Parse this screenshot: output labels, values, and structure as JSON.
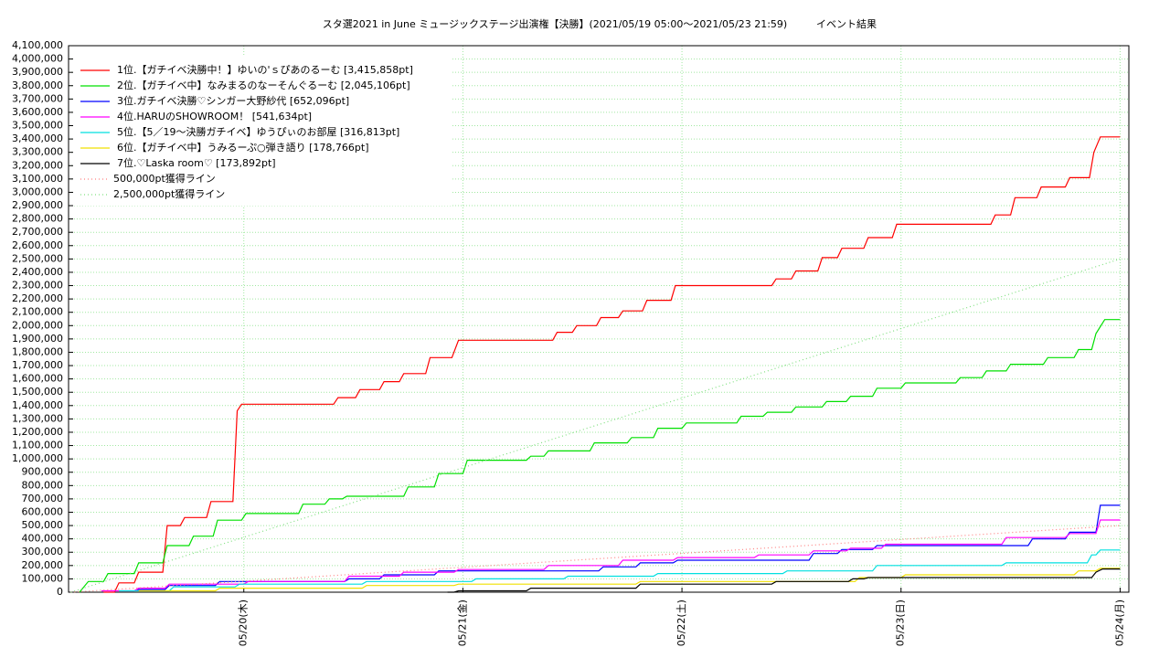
{
  "chart_data": {
    "type": "line",
    "title": "スタ選2021 in June ミュージックステージ出演権【決勝】(2021/05/19 05:00～2021/05/23 21:59)",
    "subtitle": "イベント結果",
    "xlim": [
      0.2,
      5.04
    ],
    "xticks": [
      {
        "value": 1,
        "label": "05/20(木)"
      },
      {
        "value": 2,
        "label": "05/21(金)"
      },
      {
        "value": 3,
        "label": "05/22(土)"
      },
      {
        "value": 4,
        "label": "05/23(日)"
      },
      {
        "value": 5,
        "label": "05/24(月)"
      }
    ],
    "ylim": [
      0,
      4100000
    ],
    "yticks": [
      0,
      {
        "value": 100000,
        "label": "100,000"
      },
      {
        "value": 200000,
        "label": "200,000"
      },
      {
        "value": 300000,
        "label": "300,000"
      },
      {
        "value": 400000,
        "label": "400,000"
      },
      {
        "value": 500000,
        "label": "500,000"
      },
      {
        "value": 600000,
        "label": "600,000"
      },
      {
        "value": 700000,
        "label": "700,000"
      },
      {
        "value": 800000,
        "label": "800,000"
      },
      {
        "value": 900000,
        "label": "900,000"
      },
      {
        "value": 1000000,
        "label": "1,000,000"
      },
      {
        "value": 1100000,
        "label": "1,100,000"
      },
      {
        "value": 1200000,
        "label": "1,200,000"
      },
      {
        "value": 1300000,
        "label": "1,300,000"
      },
      {
        "value": 1400000,
        "label": "1,400,000"
      },
      {
        "value": 1500000,
        "label": "1,500,000"
      },
      {
        "value": 1600000,
        "label": "1,600,000"
      },
      {
        "value": 1700000,
        "label": "1,700,000"
      },
      {
        "value": 1800000,
        "label": "1,800,000"
      },
      {
        "value": 1900000,
        "label": "1,900,000"
      },
      {
        "value": 2000000,
        "label": "2,000,000"
      },
      {
        "value": 2100000,
        "label": "2,100,000"
      },
      {
        "value": 2200000,
        "label": "2,200,000"
      },
      {
        "value": 2300000,
        "label": "2,300,000"
      },
      {
        "value": 2400000,
        "label": "2,400,000"
      },
      {
        "value": 2500000,
        "label": "2,500,000"
      },
      {
        "value": 2600000,
        "label": "2,600,000"
      },
      {
        "value": 2700000,
        "label": "2,700,000"
      },
      {
        "value": 2800000,
        "label": "2,800,000"
      },
      {
        "value": 2900000,
        "label": "2,900,000"
      },
      {
        "value": 3000000,
        "label": "3,000,000"
      },
      {
        "value": 3100000,
        "label": "3,100,000"
      },
      {
        "value": 3200000,
        "label": "3,200,000"
      },
      {
        "value": 3300000,
        "label": "3,300,000"
      },
      {
        "value": 3400000,
        "label": "3,400,000"
      },
      {
        "value": 3500000,
        "label": "3,500,000"
      },
      {
        "value": 3600000,
        "label": "3,600,000"
      },
      {
        "value": 3700000,
        "label": "3,700,000"
      },
      {
        "value": 3800000,
        "label": "3,800,000"
      },
      {
        "value": 3900000,
        "label": "3,900,000"
      },
      {
        "value": 4000000,
        "label": "4,000,000"
      },
      {
        "value": 4100000,
        "label": "4,100,000"
      }
    ],
    "grid": true,
    "legend": "upper left",
    "series": [
      {
        "name": "1位.【ガチイベ決勝中！】ゆいの'ｓぴあのるーむ [3,415,858pt]",
        "color": "#ff0000",
        "style": "solid",
        "x": [
          0.36,
          0.41,
          0.43,
          0.5,
          0.52,
          0.63,
          0.65,
          0.71,
          0.73,
          0.83,
          0.85,
          0.95,
          0.97,
          0.99,
          1.41,
          1.43,
          1.51,
          1.53,
          1.62,
          1.64,
          1.71,
          1.73,
          1.83,
          1.85,
          1.95,
          1.98,
          2.41,
          2.43,
          2.5,
          2.52,
          2.61,
          2.63,
          2.71,
          2.73,
          2.82,
          2.84,
          2.95,
          2.97,
          3.41,
          3.43,
          3.5,
          3.52,
          3.62,
          3.64,
          3.71,
          3.73,
          3.83,
          3.85,
          3.96,
          3.98,
          4.41,
          4.43,
          4.5,
          4.52,
          4.62,
          4.64,
          4.75,
          4.77,
          4.86,
          4.88,
          4.91,
          5.0
        ],
        "values": [
          0,
          0,
          70000,
          70000,
          150000,
          150000,
          500000,
          500000,
          560000,
          560000,
          680000,
          680000,
          1360000,
          1410000,
          1410000,
          1460000,
          1460000,
          1520000,
          1520000,
          1580000,
          1580000,
          1640000,
          1640000,
          1760000,
          1760000,
          1890000,
          1890000,
          1950000,
          1950000,
          2000000,
          2000000,
          2060000,
          2060000,
          2110000,
          2110000,
          2190000,
          2190000,
          2300000,
          2300000,
          2350000,
          2350000,
          2410000,
          2410000,
          2510000,
          2510000,
          2580000,
          2580000,
          2660000,
          2660000,
          2760000,
          2760000,
          2830000,
          2830000,
          2960000,
          2960000,
          3040000,
          3040000,
          3110000,
          3110000,
          3300000,
          3415858,
          3415858
        ]
      },
      {
        "name": "2位.【ガチイベ中】なみまるのなーそんぐるーむ [2,045,106pt]",
        "color": "#00e000",
        "style": "solid",
        "x": [
          0.25,
          0.29,
          0.36,
          0.38,
          0.5,
          0.52,
          0.63,
          0.65,
          0.75,
          0.77,
          0.86,
          0.88,
          0.99,
          1.01,
          1.25,
          1.27,
          1.37,
          1.39,
          1.45,
          1.47,
          1.73,
          1.75,
          1.87,
          1.89,
          2.0,
          2.02,
          2.29,
          2.31,
          2.37,
          2.39,
          2.58,
          2.6,
          2.75,
          2.77,
          2.87,
          2.89,
          3.0,
          3.02,
          3.25,
          3.27,
          3.37,
          3.39,
          3.5,
          3.52,
          3.64,
          3.66,
          3.75,
          3.77,
          3.87,
          3.89,
          4.0,
          4.02,
          4.25,
          4.27,
          4.37,
          4.39,
          4.48,
          4.5,
          4.65,
          4.67,
          4.79,
          4.81,
          4.87,
          4.89,
          4.93,
          5.0
        ],
        "values": [
          0,
          80000,
          80000,
          140000,
          140000,
          220000,
          220000,
          350000,
          350000,
          420000,
          420000,
          540000,
          540000,
          590000,
          590000,
          660000,
          660000,
          700000,
          700000,
          720000,
          720000,
          790000,
          790000,
          890000,
          890000,
          990000,
          990000,
          1020000,
          1020000,
          1060000,
          1060000,
          1120000,
          1120000,
          1160000,
          1160000,
          1230000,
          1230000,
          1270000,
          1270000,
          1320000,
          1320000,
          1350000,
          1350000,
          1390000,
          1390000,
          1430000,
          1430000,
          1470000,
          1470000,
          1530000,
          1530000,
          1570000,
          1570000,
          1610000,
          1610000,
          1660000,
          1660000,
          1710000,
          1710000,
          1760000,
          1760000,
          1820000,
          1820000,
          1940000,
          2045106,
          2045106
        ]
      },
      {
        "name": "3位.ガチイベ決勝♡シンガー大野紗代 [652,096pt]",
        "color": "#0000ff",
        "style": "solid",
        "x": [
          0.51,
          0.64,
          0.66,
          0.87,
          0.89,
          1.46,
          1.48,
          1.62,
          1.64,
          1.87,
          1.89,
          2.62,
          2.64,
          2.79,
          2.81,
          2.96,
          2.98,
          3.58,
          3.6,
          3.71,
          3.73,
          3.87,
          3.89,
          4.58,
          4.6,
          4.75,
          4.77,
          4.89,
          4.91,
          5.0
        ],
        "values": [
          20000,
          20000,
          50000,
          50000,
          80000,
          80000,
          100000,
          100000,
          130000,
          130000,
          160000,
          160000,
          190000,
          190000,
          220000,
          220000,
          240000,
          240000,
          290000,
          290000,
          320000,
          320000,
          350000,
          350000,
          400000,
          400000,
          450000,
          450000,
          652096,
          652096
        ]
      },
      {
        "name": "4位.HARUのSHOWROOM！ [541,634pt]",
        "color": "#ff00ff",
        "style": "solid",
        "x": [
          0.35,
          0.5,
          0.52,
          0.64,
          0.66,
          1.0,
          1.02,
          1.46,
          1.48,
          1.71,
          1.73,
          1.96,
          1.98,
          2.37,
          2.39,
          2.71,
          2.73,
          2.96,
          2.98,
          3.33,
          3.35,
          3.58,
          3.6,
          3.75,
          3.77,
          3.91,
          3.93,
          4.46,
          4.48,
          4.75,
          4.77,
          4.89,
          4.91,
          5.0
        ],
        "values": [
          10000,
          10000,
          30000,
          30000,
          60000,
          60000,
          80000,
          80000,
          120000,
          120000,
          150000,
          150000,
          170000,
          170000,
          200000,
          200000,
          240000,
          240000,
          260000,
          260000,
          280000,
          280000,
          310000,
          310000,
          330000,
          330000,
          360000,
          360000,
          410000,
          410000,
          440000,
          440000,
          541634,
          541634
        ]
      },
      {
        "name": "5位.【5／19～決勝ガチイベ】ゆうぴぃのお部屋 [316,813pt]",
        "color": "#00e0e0",
        "style": "solid",
        "x": [
          0.43,
          0.66,
          0.68,
          0.96,
          0.98,
          1.54,
          1.56,
          2.04,
          2.06,
          2.46,
          2.48,
          2.87,
          2.89,
          3.46,
          3.48,
          3.87,
          3.89,
          4.46,
          4.48,
          4.85,
          4.87,
          4.89,
          4.91,
          5.0
        ],
        "values": [
          10000,
          10000,
          40000,
          40000,
          60000,
          60000,
          80000,
          80000,
          100000,
          100000,
          120000,
          120000,
          140000,
          140000,
          160000,
          160000,
          200000,
          200000,
          220000,
          220000,
          280000,
          280000,
          316813,
          316813
        ]
      },
      {
        "name": "6位.【ガチイベ中】うみるーぷ○弾き語り [178,766pt]",
        "color": "#f0e000",
        "style": "solid",
        "x": [
          0.52,
          0.87,
          0.89,
          1.54,
          1.56,
          1.96,
          1.98,
          2.79,
          2.81,
          3.79,
          3.81,
          4.0,
          4.02,
          4.79,
          4.81,
          4.89,
          4.91,
          5.0
        ],
        "values": [
          10000,
          10000,
          30000,
          30000,
          50000,
          50000,
          60000,
          60000,
          80000,
          80000,
          110000,
          110000,
          130000,
          130000,
          160000,
          160000,
          178766,
          178766
        ]
      },
      {
        "name": "7位.♡Laska room♡ [173,892pt]",
        "color": "#000000",
        "style": "solid",
        "x": [
          1.93,
          1.96,
          1.98,
          2.29,
          2.31,
          2.79,
          2.81,
          3.41,
          3.43,
          3.76,
          3.78,
          3.83,
          3.85,
          4.87,
          4.89,
          4.92,
          5.0
        ],
        "values": [
          0,
          0,
          10000,
          10000,
          30000,
          30000,
          60000,
          60000,
          80000,
          80000,
          100000,
          100000,
          110000,
          110000,
          150000,
          173892,
          173892
        ]
      },
      {
        "name": "500,000pt獲得ライン",
        "color": "#ff8080",
        "style": "dotted",
        "x": [
          0.21,
          5.0
        ],
        "values": [
          0,
          500000
        ]
      },
      {
        "name": "2,500,000pt獲得ライン",
        "color": "#80e080",
        "style": "dotted",
        "x": [
          0.21,
          5.0
        ],
        "values": [
          0,
          2500000
        ]
      }
    ]
  }
}
